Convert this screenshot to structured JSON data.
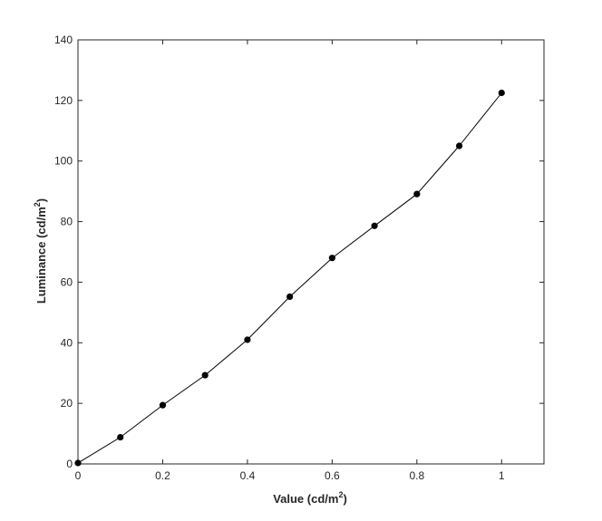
{
  "chart_data": {
    "type": "line",
    "title": "",
    "xlabel": "Value (cd/m",
    "xlabel_sup": "2",
    "xlabel_tail": ")",
    "ylabel": "Luminance (cd/m",
    "ylabel_sup": "2",
    "ylabel_tail": ")",
    "xlim": [
      0,
      1.1
    ],
    "ylim": [
      0,
      140
    ],
    "xticks": [
      0,
      0.2,
      0.4,
      0.6,
      0.8,
      1
    ],
    "xtick_labels": [
      "0",
      "0.2",
      "0.4",
      "0.6",
      "0.8",
      "1"
    ],
    "yticks": [
      0,
      20,
      40,
      60,
      80,
      100,
      120,
      140
    ],
    "ytick_labels": [
      "0",
      "20",
      "40",
      "60",
      "80",
      "100",
      "120",
      "140"
    ],
    "grid": false,
    "line_color": "#000000",
    "marker_color": "#000000",
    "series": [
      {
        "x": [
          0,
          0.1,
          0.2,
          0.3,
          0.4,
          0.5,
          0.6,
          0.7,
          0.8,
          0.9,
          1.0
        ],
        "y": [
          0.3,
          8.8,
          19.4,
          29.3,
          41.0,
          55.2,
          68.0,
          78.6,
          89.1,
          105.0,
          122.5
        ]
      }
    ]
  }
}
